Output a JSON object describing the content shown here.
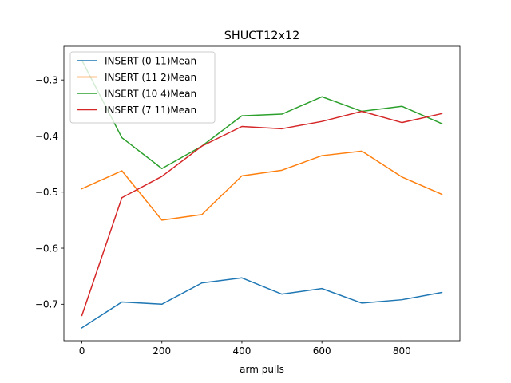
{
  "chart_data": {
    "type": "line",
    "title": "SHUCT12x12",
    "xlabel": "arm pulls",
    "ylabel": "",
    "x": [
      0,
      100,
      200,
      300,
      400,
      500,
      600,
      700,
      800,
      900
    ],
    "xlim": [
      -45,
      945
    ],
    "ylim": [
      -0.765,
      -0.24
    ],
    "xticks": [
      0,
      200,
      400,
      600,
      800
    ],
    "xtick_labels": [
      "0",
      "200",
      "400",
      "600",
      "800"
    ],
    "yticks": [
      -0.7,
      -0.6,
      -0.5,
      -0.4,
      -0.3
    ],
    "ytick_labels": [
      "−0.7",
      "−0.6",
      "−0.5",
      "−0.4",
      "−0.3"
    ],
    "grid": false,
    "legend_position": "top-left",
    "series": [
      {
        "name": "INSERT (0 11)Mean",
        "color": "#1f77b4",
        "values": [
          -0.742,
          -0.696,
          -0.7,
          -0.662,
          -0.653,
          -0.682,
          -0.672,
          -0.698,
          -0.692,
          -0.679
        ]
      },
      {
        "name": "INSERT (11 2)Mean",
        "color": "#ff7f0e",
        "values": [
          -0.494,
          -0.462,
          -0.55,
          -0.54,
          -0.471,
          -0.461,
          -0.435,
          -0.427,
          -0.473,
          -0.504
        ]
      },
      {
        "name": "INSERT (10 4)Mean",
        "color": "#2ca02c",
        "values": [
          -0.265,
          -0.403,
          -0.458,
          -0.418,
          -0.364,
          -0.361,
          -0.33,
          -0.356,
          -0.347,
          -0.378
        ]
      },
      {
        "name": "INSERT (7 11)Mean",
        "color": "#d62728",
        "values": [
          -0.72,
          -0.51,
          -0.472,
          -0.418,
          -0.383,
          -0.387,
          -0.374,
          -0.356,
          -0.376,
          -0.36
        ]
      }
    ]
  }
}
